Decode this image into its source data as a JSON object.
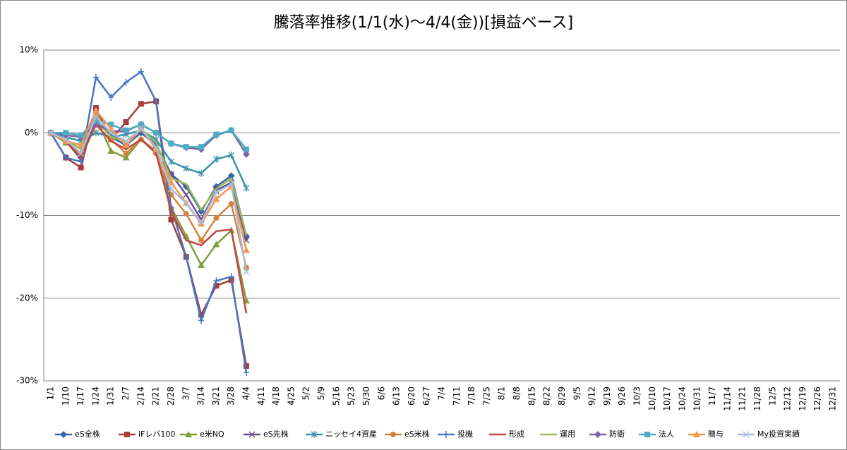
{
  "chart_data": {
    "type": "line",
    "title": "騰落率推移(1/1(水)～4/4(金))[損益ベース]",
    "categories": [
      "1/1",
      "1/10",
      "1/17",
      "1/24",
      "1/31",
      "2/7",
      "2/14",
      "2/21",
      "2/28",
      "3/7",
      "3/14",
      "3/21",
      "3/28",
      "4/4",
      "4/11",
      "4/18",
      "4/25",
      "5/2",
      "5/9",
      "5/16",
      "5/23",
      "5/30",
      "6/6",
      "6/13",
      "6/20",
      "6/27",
      "7/4",
      "7/11",
      "7/18",
      "7/25",
      "8/1",
      "8/8",
      "8/15",
      "8/22",
      "8/29",
      "9/5",
      "9/12",
      "9/19",
      "9/26",
      "10/3",
      "10/10",
      "10/17",
      "10/24",
      "10/31",
      "11/7",
      "11/14",
      "11/21",
      "11/28",
      "12/5",
      "12/12",
      "12/19",
      "12/26",
      "12/31"
    ],
    "ylim": [
      -30,
      10
    ],
    "yticks": [
      {
        "value": -30,
        "label": "-30%"
      },
      {
        "value": -20,
        "label": "-20%"
      },
      {
        "value": -10,
        "label": "-10%"
      },
      {
        "value": 0,
        "label": "0%"
      },
      {
        "value": 10,
        "label": "10%"
      }
    ],
    "grid": true,
    "legend": "bottom",
    "series": [
      {
        "name": "eS全株",
        "color": "#3a63a8",
        "marker": "diamond",
        "values": [
          0,
          -1,
          -3,
          1.5,
          -0.5,
          -1.5,
          0,
          -1.5,
          -5,
          -6.5,
          -9.5,
          -6.5,
          -5.2,
          -12.5,
          null,
          null,
          null,
          null,
          null,
          null,
          null,
          null,
          null,
          null,
          null,
          null,
          null,
          null,
          null,
          null,
          null,
          null,
          null,
          null,
          null,
          null,
          null,
          null,
          null,
          null,
          null,
          null,
          null,
          null,
          null,
          null,
          null,
          null,
          null,
          null,
          null,
          null,
          null
        ]
      },
      {
        "name": "iFレバ100",
        "color": "#a83c3a",
        "marker": "square",
        "values": [
          0,
          -3,
          -4.2,
          3,
          -0.8,
          1.3,
          3.5,
          3.8,
          -10.5,
          -15,
          -22,
          -18.5,
          -17.8,
          -28.2,
          null,
          null,
          null,
          null,
          null,
          null,
          null,
          null,
          null,
          null,
          null,
          null,
          null,
          null,
          null,
          null,
          null,
          null,
          null,
          null,
          null,
          null,
          null,
          null,
          null,
          null,
          null,
          null,
          null,
          null,
          null,
          null,
          null,
          null,
          null,
          null,
          null,
          null,
          null
        ]
      },
      {
        "name": "e米NQ",
        "color": "#7f9e3e",
        "marker": "triangle",
        "values": [
          0,
          -1.2,
          -2.5,
          1.8,
          -2.2,
          -3,
          -0.8,
          -2.2,
          -9,
          -12.5,
          -16,
          -13.5,
          -11.8,
          -20.3,
          null,
          null,
          null,
          null,
          null,
          null,
          null,
          null,
          null,
          null,
          null,
          null,
          null,
          null,
          null,
          null,
          null,
          null,
          null,
          null,
          null,
          null,
          null,
          null,
          null,
          null,
          null,
          null,
          null,
          null,
          null,
          null,
          null,
          null,
          null,
          null,
          null,
          null,
          null
        ]
      },
      {
        "name": "eS先株",
        "color": "#6a4e8f",
        "marker": "x",
        "values": [
          0,
          -1,
          -3.2,
          1.5,
          -0.3,
          -1,
          0.3,
          -1.5,
          -5,
          -7.5,
          -10.5,
          -7,
          -6,
          -13,
          null,
          null,
          null,
          null,
          null,
          null,
          null,
          null,
          null,
          null,
          null,
          null,
          null,
          null,
          null,
          null,
          null,
          null,
          null,
          null,
          null,
          null,
          null,
          null,
          null,
          null,
          null,
          null,
          null,
          null,
          null,
          null,
          null,
          null,
          null,
          null,
          null,
          null,
          null
        ]
      },
      {
        "name": "ニッセイ4資産",
        "color": "#3a93a8",
        "marker": "star",
        "values": [
          0,
          -0.5,
          -1,
          0,
          -0.5,
          -0.2,
          0.3,
          -0.8,
          -3.5,
          -4.3,
          -4.9,
          -3.2,
          -2.7,
          -6.7,
          null,
          null,
          null,
          null,
          null,
          null,
          null,
          null,
          null,
          null,
          null,
          null,
          null,
          null,
          null,
          null,
          null,
          null,
          null,
          null,
          null,
          null,
          null,
          null,
          null,
          null,
          null,
          null,
          null,
          null,
          null,
          null,
          null,
          null,
          null,
          null,
          null,
          null,
          null
        ]
      },
      {
        "name": "eS米株",
        "color": "#d9823b",
        "marker": "circle",
        "values": [
          0,
          -1,
          -2.5,
          2.5,
          -0.8,
          -2.5,
          -0.8,
          -2.5,
          -7.5,
          -9.8,
          -13,
          -10.3,
          -8.6,
          -16.3,
          null,
          null,
          null,
          null,
          null,
          null,
          null,
          null,
          null,
          null,
          null,
          null,
          null,
          null,
          null,
          null,
          null,
          null,
          null,
          null,
          null,
          null,
          null,
          null,
          null,
          null,
          null,
          null,
          null,
          null,
          null,
          null,
          null,
          null,
          null,
          null,
          null,
          null,
          null
        ]
      },
      {
        "name": "投機",
        "color": "#4677c4",
        "marker": "plus",
        "values": [
          0,
          -3,
          -3.5,
          6.7,
          4.3,
          6.1,
          7.4,
          3.8,
          -9,
          -15,
          -22.7,
          -17.9,
          -17.4,
          -29,
          null,
          null,
          null,
          null,
          null,
          null,
          null,
          null,
          null,
          null,
          null,
          null,
          null,
          null,
          null,
          null,
          null,
          null,
          null,
          null,
          null,
          null,
          null,
          null,
          null,
          null,
          null,
          null,
          null,
          null,
          null,
          null,
          null,
          null,
          null,
          null,
          null,
          null,
          null
        ]
      },
      {
        "name": "形成",
        "color": "#c0463f",
        "marker": "none",
        "values": [
          0,
          -1,
          -3,
          1,
          -1,
          -2,
          -0.8,
          -2.5,
          -9.5,
          -13,
          -13.6,
          -11.9,
          -11.7,
          -21.8,
          null,
          null,
          null,
          null,
          null,
          null,
          null,
          null,
          null,
          null,
          null,
          null,
          null,
          null,
          null,
          null,
          null,
          null,
          null,
          null,
          null,
          null,
          null,
          null,
          null,
          null,
          null,
          null,
          null,
          null,
          null,
          null,
          null,
          null,
          null,
          null,
          null,
          null,
          null
        ]
      },
      {
        "name": "運用",
        "color": "#9bbb59",
        "marker": "none",
        "values": [
          0,
          -0.8,
          -2,
          1.5,
          -0.5,
          -1,
          0.5,
          -1.2,
          -5.5,
          -6.2,
          -9.3,
          -6.8,
          -5.5,
          -12.4,
          null,
          null,
          null,
          null,
          null,
          null,
          null,
          null,
          null,
          null,
          null,
          null,
          null,
          null,
          null,
          null,
          null,
          null,
          null,
          null,
          null,
          null,
          null,
          null,
          null,
          null,
          null,
          null,
          null,
          null,
          null,
          null,
          null,
          null,
          null,
          null,
          null,
          null,
          null
        ]
      },
      {
        "name": "防衛",
        "color": "#8064a2",
        "marker": "diamond",
        "values": [
          0,
          -0.3,
          -0.5,
          1,
          0.2,
          0.2,
          1,
          0,
          -1.3,
          -1.8,
          -2,
          -0.3,
          0.3,
          -2.6,
          null,
          null,
          null,
          null,
          null,
          null,
          null,
          null,
          null,
          null,
          null,
          null,
          null,
          null,
          null,
          null,
          null,
          null,
          null,
          null,
          null,
          null,
          null,
          null,
          null,
          null,
          null,
          null,
          null,
          null,
          null,
          null,
          null,
          null,
          null,
          null,
          null,
          null,
          null
        ]
      },
      {
        "name": "法人",
        "color": "#4bacc6",
        "marker": "square",
        "values": [
          0,
          0,
          -0.3,
          1.5,
          1,
          0.3,
          1,
          0,
          -1.3,
          -1.7,
          -1.7,
          -0.2,
          0.3,
          -2,
          null,
          null,
          null,
          null,
          null,
          null,
          null,
          null,
          null,
          null,
          null,
          null,
          null,
          null,
          null,
          null,
          null,
          null,
          null,
          null,
          null,
          null,
          null,
          null,
          null,
          null,
          null,
          null,
          null,
          null,
          null,
          null,
          null,
          null,
          null,
          null,
          null,
          null,
          null
        ]
      },
      {
        "name": "贈与",
        "color": "#f79646",
        "marker": "triangle",
        "values": [
          0,
          -1,
          -1.5,
          2.7,
          0.5,
          -1.5,
          0.5,
          -2,
          -6,
          -8.5,
          -11,
          -8,
          -6.5,
          -14.2,
          null,
          null,
          null,
          null,
          null,
          null,
          null,
          null,
          null,
          null,
          null,
          null,
          null,
          null,
          null,
          null,
          null,
          null,
          null,
          null,
          null,
          null,
          null,
          null,
          null,
          null,
          null,
          null,
          null,
          null,
          null,
          null,
          null,
          null,
          null,
          null,
          null,
          null,
          null
        ]
      },
      {
        "name": "My投資実績",
        "color": "#a9bde0",
        "marker": "x",
        "values": [
          0,
          -0.8,
          -2.5,
          2,
          0,
          -1,
          0.5,
          -1.8,
          -6.8,
          -8.5,
          -10.8,
          -7.2,
          -6.2,
          -16.8,
          null,
          null,
          null,
          null,
          null,
          null,
          null,
          null,
          null,
          null,
          null,
          null,
          null,
          null,
          null,
          null,
          null,
          null,
          null,
          null,
          null,
          null,
          null,
          null,
          null,
          null,
          null,
          null,
          null,
          null,
          null,
          null,
          null,
          null,
          null,
          null,
          null,
          null,
          null
        ]
      }
    ]
  }
}
